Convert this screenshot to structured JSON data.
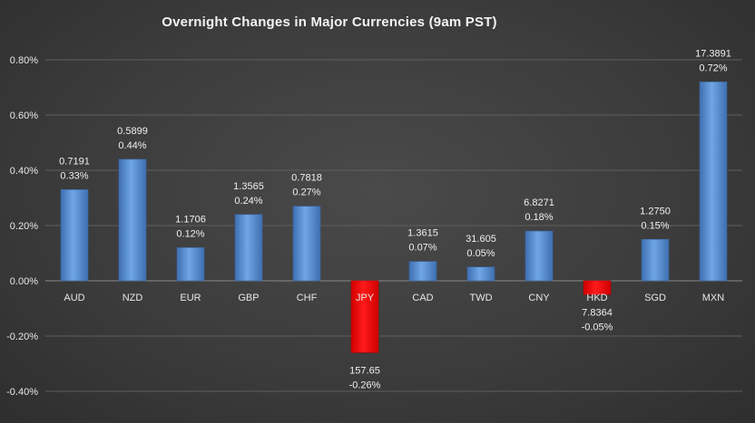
{
  "chart_data": {
    "type": "bar",
    "title": "Overnight Changes in Major Currencies (9am PST)",
    "xlabel": "",
    "ylabel": "",
    "ylim": [
      -0.4,
      0.8
    ],
    "yticks": [
      "0.80%",
      "0.60%",
      "0.40%",
      "0.20%",
      "0.00%",
      "-0.20%",
      "-0.40%"
    ],
    "ytick_values": [
      0.8,
      0.6,
      0.4,
      0.2,
      0.0,
      -0.2,
      -0.4
    ],
    "grid": true,
    "legend": "none",
    "categories": [
      "AUD",
      "NZD",
      "EUR",
      "GBP",
      "CHF",
      "JPY",
      "CAD",
      "TWD",
      "CNY",
      "HKD",
      "SGD",
      "MXN"
    ],
    "values": [
      0.33,
      0.44,
      0.12,
      0.24,
      0.27,
      -0.26,
      0.07,
      0.05,
      0.18,
      -0.05,
      0.15,
      0.72
    ],
    "value_labels": [
      "0.33%",
      "0.44%",
      "0.12%",
      "0.24%",
      "0.27%",
      "-0.26%",
      "0.07%",
      "0.05%",
      "0.18%",
      "-0.05%",
      "0.15%",
      "0.72%"
    ],
    "rate_labels": [
      "0.7191",
      "0.5899",
      "1.1706",
      "1.3565",
      "0.7818",
      "157.65",
      "1.3615",
      "31.605",
      "6.8271",
      "7.8364",
      "1.2750",
      "17.3891"
    ],
    "colors": {
      "positive": "#5b9bd5",
      "negative": "#ff0000"
    }
  }
}
